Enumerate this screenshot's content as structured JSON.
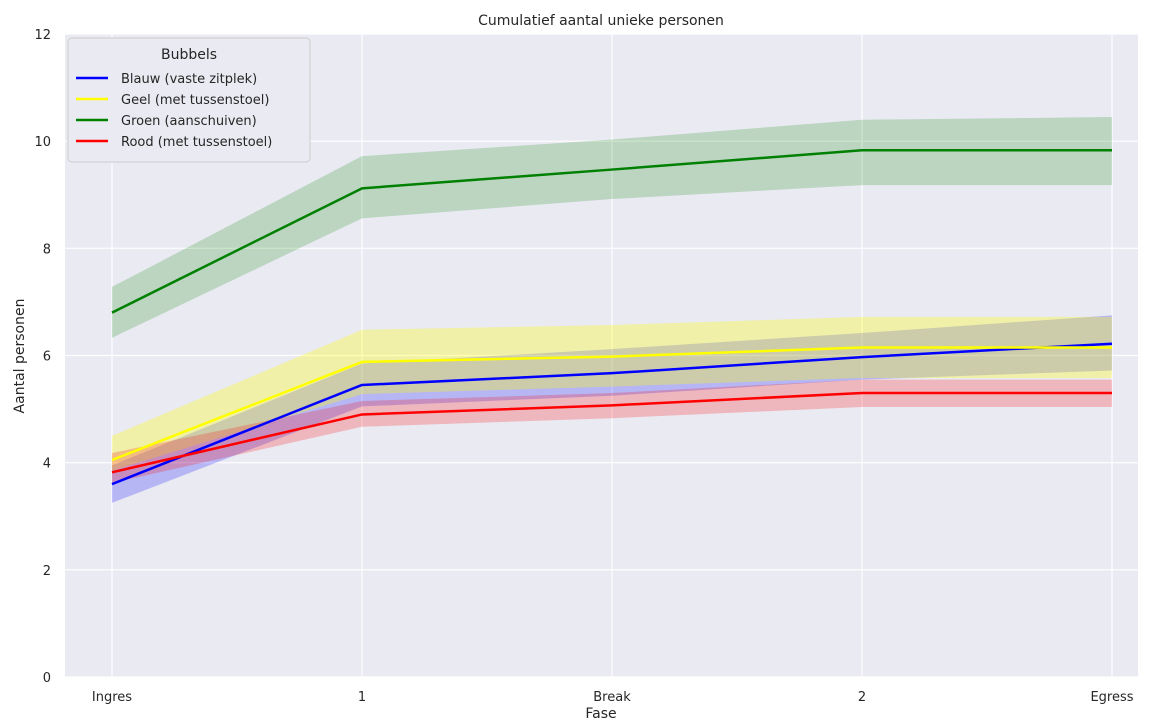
{
  "chart_data": {
    "type": "line",
    "title": "Cumulatief aantal unieke personen",
    "xlabel": "Fase",
    "ylabel": "Aantal personen",
    "categories": [
      "Ingres",
      "1",
      "Break",
      "2",
      "Egress"
    ],
    "ylim": [
      0,
      12
    ],
    "yticks": [
      "0",
      "2",
      "4",
      "6",
      "8",
      "10",
      "12"
    ],
    "grid": true,
    "legend": {
      "title": "Bubbels",
      "placement": "top-left"
    },
    "series": [
      {
        "name": "Blauw (vaste zitplek)",
        "color": "#0000ff",
        "values": [
          3.6,
          5.45,
          5.67,
          5.97,
          6.22
        ],
        "lower": [
          3.25,
          5.05,
          5.25,
          5.55,
          5.72
        ],
        "upper": [
          3.95,
          5.85,
          6.12,
          6.42,
          6.75
        ]
      },
      {
        "name": "Geel (met tussenstoel)",
        "color": "#ffff00",
        "values": [
          4.05,
          5.88,
          5.98,
          6.15,
          6.15
        ],
        "lower": [
          3.85,
          5.28,
          5.42,
          5.58,
          5.58
        ],
        "upper": [
          4.5,
          6.48,
          6.57,
          6.72,
          6.72
        ]
      },
      {
        "name": "Groen (aanschuiven)",
        "color": "#008000",
        "values": [
          6.8,
          9.12,
          9.47,
          9.83,
          9.83
        ],
        "lower": [
          6.33,
          8.56,
          8.92,
          9.18,
          9.18
        ],
        "upper": [
          7.28,
          9.72,
          10.03,
          10.4,
          10.45
        ]
      },
      {
        "name": "Rood (met tussenstoel)",
        "color": "#ff0000",
        "values": [
          3.82,
          4.9,
          5.07,
          5.3,
          5.3
        ],
        "lower": [
          3.62,
          4.67,
          4.83,
          5.04,
          5.04
        ],
        "upper": [
          4.18,
          5.15,
          5.3,
          5.55,
          5.55
        ]
      }
    ]
  }
}
